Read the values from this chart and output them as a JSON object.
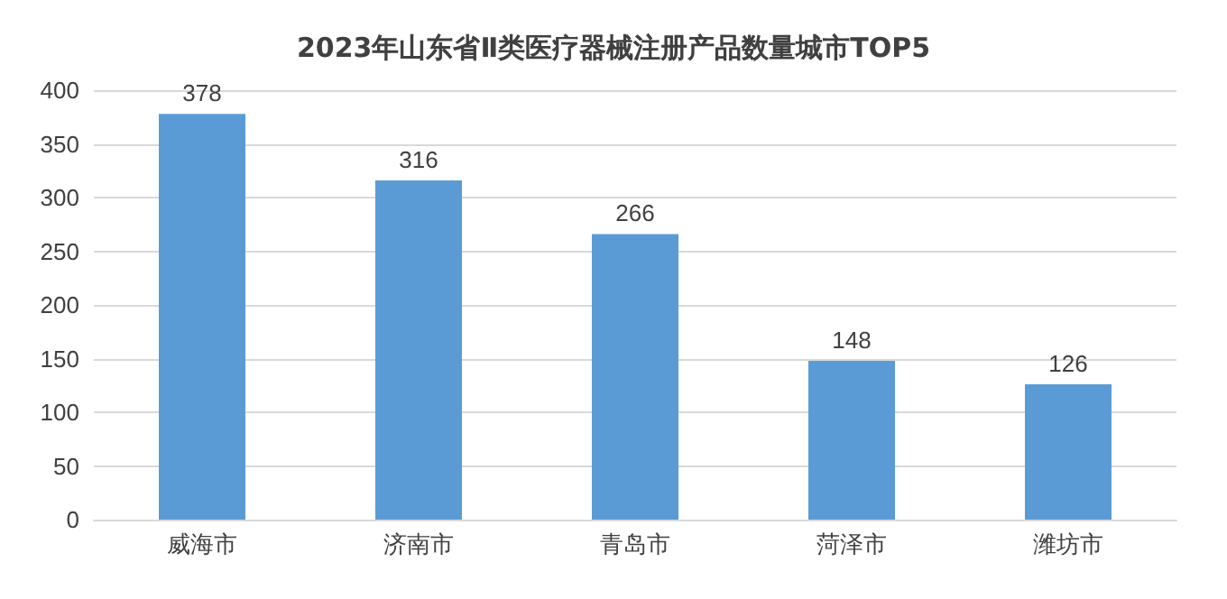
{
  "chart_data": {
    "type": "bar",
    "title": "2023年山东省Ⅱ类医疗器械注册产品数量城市TOP5",
    "categories": [
      "威海市",
      "济南市",
      "青岛市",
      "菏泽市",
      "潍坊市"
    ],
    "values": [
      378,
      316,
      266,
      148,
      126
    ],
    "color": "#5b9bd5",
    "ylim": [
      0,
      400
    ],
    "yticks": [
      0,
      50,
      100,
      150,
      200,
      250,
      300,
      350,
      400
    ],
    "grid": "y",
    "data_labels": true
  }
}
